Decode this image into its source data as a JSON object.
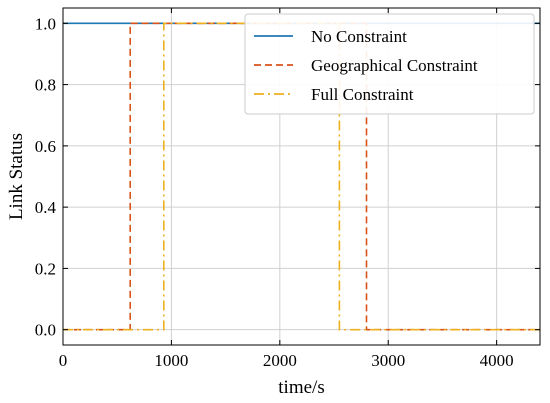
{
  "chart_data": {
    "type": "line",
    "xlabel": "time/s",
    "ylabel": "Link Status",
    "xlim": [
      0,
      4400
    ],
    "ylim": [
      -0.05,
      1.05
    ],
    "x_ticks": [
      0,
      1000,
      2000,
      3000,
      4000
    ],
    "y_ticks": [
      0.0,
      0.2,
      0.4,
      0.6,
      0.8,
      1.0
    ],
    "x_tick_labels": [
      "0",
      "1000",
      "2000",
      "3000",
      "4000"
    ],
    "y_tick_labels": [
      "0.0",
      "0.2",
      "0.4",
      "0.6",
      "0.8",
      "1.0"
    ],
    "grid": true,
    "legend_position": "top-right",
    "series": [
      {
        "name": "No Constraint",
        "color": "#1f77b4",
        "line_style": "solid",
        "points": [
          [
            0,
            1
          ],
          [
            4400,
            1
          ]
        ]
      },
      {
        "name": "Geographical Constraint",
        "color": "#d95319",
        "line_style": "dashed",
        "points": [
          [
            0,
            0
          ],
          [
            620,
            0
          ],
          [
            620,
            1
          ],
          [
            2800,
            1
          ],
          [
            2800,
            0
          ],
          [
            4400,
            0
          ]
        ]
      },
      {
        "name": "Full Constraint",
        "color": "#edb120",
        "line_style": "dashdot",
        "points": [
          [
            0,
            0
          ],
          [
            930,
            0
          ],
          [
            930,
            1
          ],
          [
            2550,
            1
          ],
          [
            2550,
            0
          ],
          [
            4400,
            0
          ]
        ]
      }
    ]
  }
}
